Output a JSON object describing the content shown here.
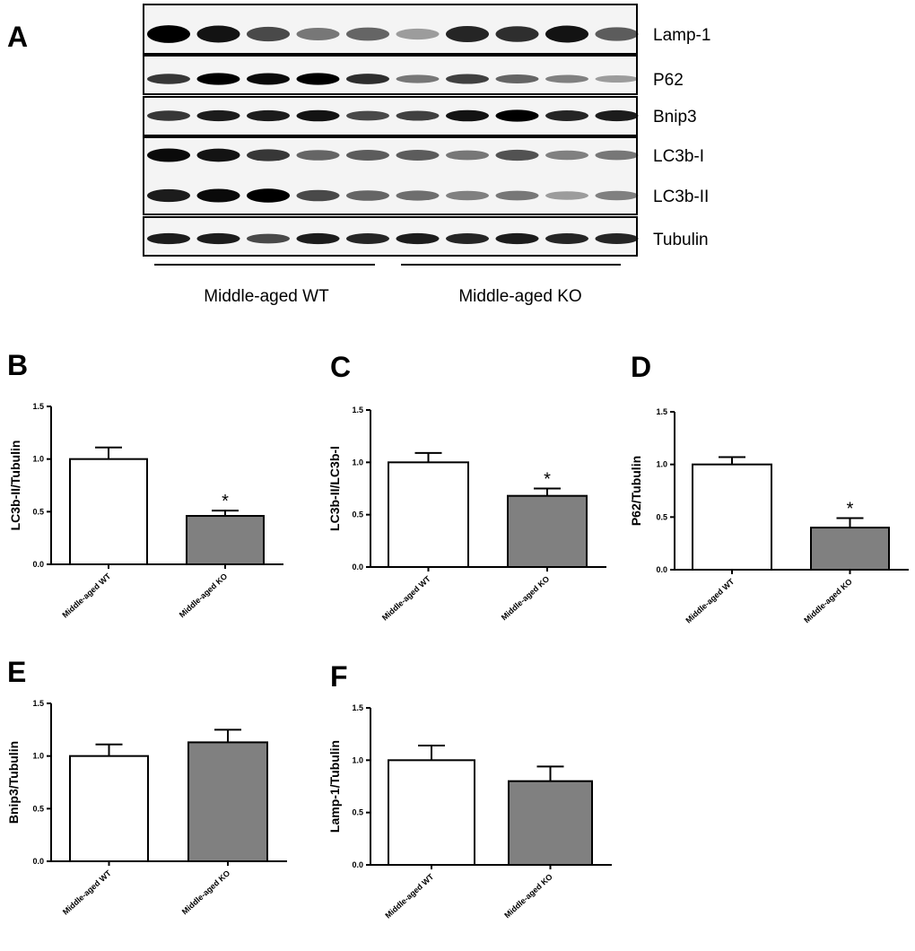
{
  "blot": {
    "panel_label": "A",
    "bands": [
      "Lamp-1",
      "P62",
      "Bnip3",
      "LC3b-I",
      "LC3b-II",
      "Tubulin"
    ],
    "groups": [
      "Middle-aged WT",
      "Middle-aged KO"
    ]
  },
  "chart_data": [
    {
      "type": "bar",
      "panel_label": "B",
      "ylabel": "LC3b-II/Tubulin",
      "categories": [
        "Middle-aged WT",
        "Middle-aged KO"
      ],
      "values": [
        1.0,
        0.46
      ],
      "errors": [
        0.11,
        0.05
      ],
      "colors": [
        "#ffffff",
        "#808080"
      ],
      "ylim": [
        0,
        1.5
      ],
      "yticks": [
        {
          "value": 0,
          "label": "0.0"
        },
        0.5,
        {
          "value": 1,
          "label": "1.0"
        },
        1.5
      ],
      "annotations": [
        {
          "text": "*",
          "category": "Middle-aged KO"
        }
      ]
    },
    {
      "type": "bar",
      "panel_label": "C",
      "ylabel": "LC3b-II/LC3b-I",
      "categories": [
        "Middle-aged WT",
        "Middle-aged KO"
      ],
      "values": [
        1.0,
        0.68
      ],
      "errors": [
        0.09,
        0.07
      ],
      "colors": [
        "#ffffff",
        "#808080"
      ],
      "ylim": [
        0,
        1.5
      ],
      "yticks": [
        {
          "value": 0,
          "label": "0.0"
        },
        0.5,
        {
          "value": 1,
          "label": "1.0"
        },
        1.5
      ],
      "annotations": [
        {
          "text": "*",
          "category": "Middle-aged KO"
        }
      ]
    },
    {
      "type": "bar",
      "panel_label": "D",
      "ylabel": "P62/Tubulin",
      "categories": [
        "Middle-aged WT",
        "Middle-aged KO"
      ],
      "values": [
        1.0,
        0.4
      ],
      "errors": [
        0.07,
        0.09
      ],
      "colors": [
        "#ffffff",
        "#808080"
      ],
      "ylim": [
        0,
        1.5
      ],
      "yticks": [
        {
          "value": 0,
          "label": "0.0"
        },
        0.5,
        {
          "value": 1,
          "label": "1.0"
        },
        1.5
      ],
      "annotations": [
        {
          "text": "*",
          "category": "Middle-aged KO"
        }
      ]
    },
    {
      "type": "bar",
      "panel_label": "E",
      "ylabel": "Bnip3/Tubulin",
      "categories": [
        "Middle-aged WT",
        "Middle-aged KO"
      ],
      "values": [
        1.0,
        1.13
      ],
      "errors": [
        0.11,
        0.12
      ],
      "colors": [
        "#ffffff",
        "#808080"
      ],
      "ylim": [
        0,
        1.5
      ],
      "yticks": [
        {
          "value": 0,
          "label": "0.0"
        },
        0.5,
        {
          "value": 1,
          "label": "1.0"
        },
        1.5
      ]
    },
    {
      "type": "bar",
      "panel_label": "F",
      "ylabel": "Lamp-1/Tubulin",
      "categories": [
        "Middle-aged WT",
        "Middle-aged KO"
      ],
      "values": [
        1.0,
        0.8
      ],
      "errors": [
        0.14,
        0.14
      ],
      "colors": [
        "#ffffff",
        "#808080"
      ],
      "ylim": [
        0,
        1.5
      ],
      "yticks": [
        {
          "value": 0,
          "label": "0.0"
        },
        0.5,
        {
          "value": 1,
          "label": "1.0"
        },
        1.5
      ]
    }
  ]
}
